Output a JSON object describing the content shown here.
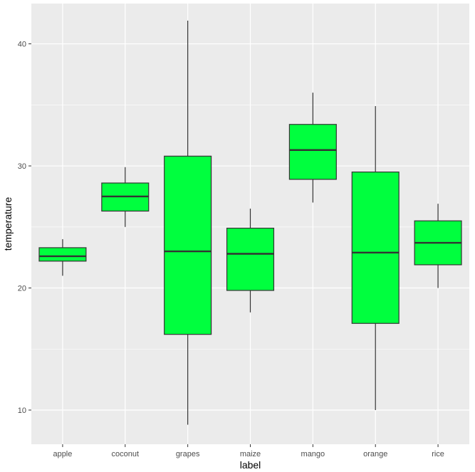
{
  "chart_data": {
    "type": "boxplot",
    "xlabel": "label",
    "ylabel": "temperature",
    "ylim": [
      7.2,
      43.3
    ],
    "y_ticks": [
      10,
      20,
      30,
      40
    ],
    "y_tick_labels": [
      "10",
      "20",
      "30",
      "40"
    ],
    "grid": true,
    "legend": "none",
    "colors": {
      "panel": "#EBEBEB",
      "grid_major": "#FFFFFF",
      "box_fill": "#00FF3E",
      "box_stroke": "#333333",
      "whisker": "#333333",
      "tick_text": "#4D4D4D"
    },
    "categories": [
      "apple",
      "coconut",
      "grapes",
      "maize",
      "mango",
      "orange",
      "rice"
    ],
    "boxes": [
      {
        "label": "apple",
        "min": 21.0,
        "q1": 22.2,
        "median": 22.6,
        "q3": 23.3,
        "max": 24.0
      },
      {
        "label": "coconut",
        "min": 25.0,
        "q1": 26.3,
        "median": 27.5,
        "q3": 28.6,
        "max": 29.9
      },
      {
        "label": "grapes",
        "min": 8.8,
        "q1": 16.2,
        "median": 23.0,
        "q3": 30.8,
        "max": 41.9
      },
      {
        "label": "maize",
        "min": 18.0,
        "q1": 19.8,
        "median": 22.8,
        "q3": 24.9,
        "max": 26.5
      },
      {
        "label": "mango",
        "min": 27.0,
        "q1": 28.9,
        "median": 31.3,
        "q3": 33.4,
        "max": 36.0
      },
      {
        "label": "orange",
        "min": 10.0,
        "q1": 17.1,
        "median": 22.9,
        "q3": 29.5,
        "max": 34.9
      },
      {
        "label": "rice",
        "min": 20.0,
        "q1": 21.9,
        "median": 23.7,
        "q3": 25.5,
        "max": 26.9
      }
    ]
  }
}
